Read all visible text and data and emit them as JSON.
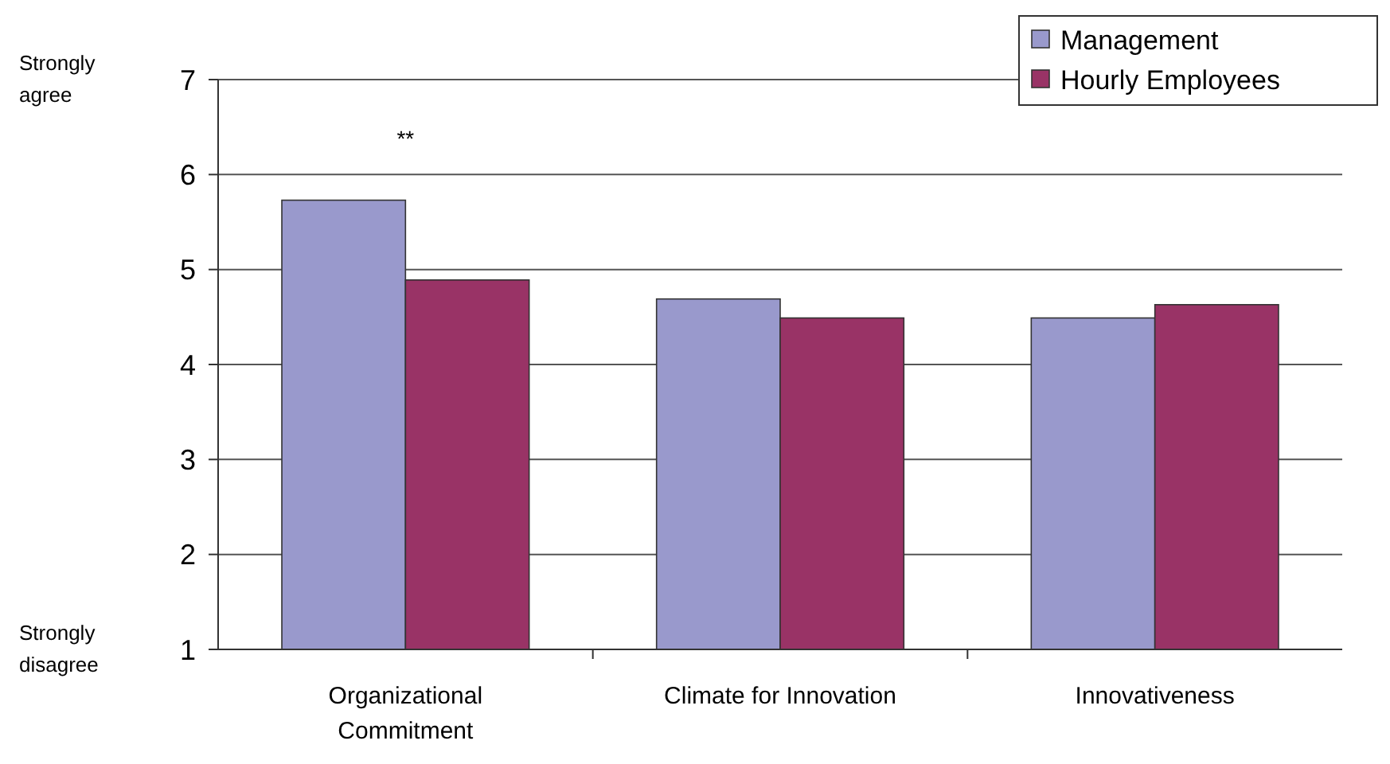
{
  "chart_data": {
    "type": "bar",
    "categories": [
      "Organizational Commitment",
      "Climate for Innovation",
      "Innovativeness"
    ],
    "series": [
      {
        "name": "Management",
        "color": "#9999cc",
        "values": [
          5.73,
          4.69,
          4.49
        ]
      },
      {
        "name": "Hourly Employees",
        "color": "#993366",
        "values": [
          4.89,
          4.49,
          4.63
        ]
      }
    ],
    "ylim": [
      1,
      7
    ],
    "yticks": [
      1,
      2,
      3,
      4,
      5,
      6,
      7
    ],
    "grid": "y",
    "legend": "top right",
    "annotations": [
      "**",
      "Strongly agree",
      "Strongly disagree"
    ]
  }
}
